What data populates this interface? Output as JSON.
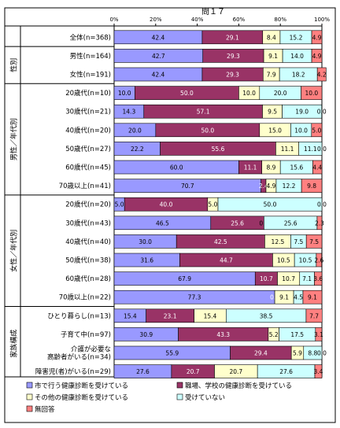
{
  "chart_data": {
    "type": "bar",
    "orientation": "horizontal",
    "stacked": "percent",
    "title": "問１７",
    "xlim": [
      0,
      100
    ],
    "x_ticks": [
      "0%",
      "20%",
      "40%",
      "60%",
      "80%",
      "100%"
    ],
    "legend_position": "bottom",
    "series": [
      {
        "name": "市で行う健康診断を受けている",
        "color": "#9999ff"
      },
      {
        "name": "職場、学校の健康診断を受けている",
        "color": "#993366"
      },
      {
        "name": "その他の健康診断を受けている",
        "color": "#ffffcc"
      },
      {
        "name": "受けていない",
        "color": "#ccffff"
      },
      {
        "name": "無回答",
        "color": "#ff8080"
      }
    ],
    "groups": [
      {
        "label": "",
        "rows": [
          0
        ]
      },
      {
        "label": "性別",
        "rows": [
          1,
          2
        ]
      },
      {
        "label": "男性／年代別",
        "rows": [
          3,
          4,
          5,
          6,
          7,
          8
        ]
      },
      {
        "label": "女性／年代別",
        "rows": [
          9,
          10,
          11,
          12,
          13,
          14
        ]
      },
      {
        "label": "家族構成",
        "rows": [
          15,
          16,
          17,
          18
        ]
      }
    ],
    "rows": [
      {
        "category": "全体(n=368)",
        "values": [
          42.4,
          29.1,
          8.4,
          15.2,
          4.9
        ],
        "labels": [
          "42.4",
          "29.1",
          "8.4",
          "15.2",
          "4.9"
        ]
      },
      {
        "category": "男性(n=164)",
        "values": [
          42.7,
          29.3,
          9.1,
          14.0,
          4.9
        ],
        "labels": [
          "42.7",
          "29.3",
          "9.1",
          "14.0",
          "4.9"
        ]
      },
      {
        "category": "女性(n=191)",
        "values": [
          42.4,
          29.3,
          7.9,
          18.2,
          4.2
        ],
        "labels": [
          "42.4",
          "29.3",
          "7.9",
          "18.2",
          "4.2"
        ]
      },
      {
        "category": "20歳代(n=10)",
        "values": [
          10.0,
          50.0,
          10.0,
          20.0,
          10.0
        ],
        "labels": [
          "10.0",
          "50.0",
          "10.0",
          "20.0",
          "10.0"
        ]
      },
      {
        "category": "30歳代(n=21)",
        "values": [
          14.3,
          57.1,
          9.5,
          19.0,
          0.0
        ],
        "labels": [
          "14.3",
          "57.1",
          "9.5",
          "19.0",
          "0.0"
        ]
      },
      {
        "category": "40歳代(n=20)",
        "values": [
          20.0,
          50.0,
          15.0,
          10.0,
          5.0
        ],
        "labels": [
          "20.0",
          "50.0",
          "15.0",
          "10.0",
          "5.0"
        ]
      },
      {
        "category": "50歳代(n=27)",
        "values": [
          22.2,
          55.6,
          11.1,
          11.1,
          0.0
        ],
        "labels": [
          "22.2",
          "55.6",
          "11.1",
          "11.1",
          "0.0"
        ]
      },
      {
        "category": "60歳代(n=45)",
        "values": [
          60.0,
          11.1,
          8.9,
          15.6,
          4.4
        ],
        "labels": [
          "60.0",
          "11.1",
          "8.9",
          "15.6",
          "4.4"
        ]
      },
      {
        "category": "70歳以上(n=41)",
        "values": [
          70.7,
          2.4,
          4.9,
          12.2,
          9.8
        ],
        "labels": [
          "70.7",
          "2.4",
          "4.9",
          "12.2",
          "9.8"
        ]
      },
      {
        "category": "20歳代(n=20)",
        "values": [
          5.0,
          40.0,
          5.0,
          50.0,
          0.0
        ],
        "labels": [
          "5.0",
          "40.0",
          "5.0",
          "50.0",
          "0.0"
        ]
      },
      {
        "category": "30歳代(n=43)",
        "values": [
          46.5,
          25.6,
          0.0,
          25.6,
          2.3
        ],
        "labels": [
          "46.5",
          "25.6",
          "0.0",
          "25.6",
          "2.3"
        ]
      },
      {
        "category": "40歳代(n=40)",
        "values": [
          30.0,
          42.5,
          12.5,
          7.5,
          7.5
        ],
        "labels": [
          "30.0",
          "42.5",
          "12.5",
          "7.5",
          "7.5"
        ]
      },
      {
        "category": "50歳代(n=38)",
        "values": [
          31.6,
          44.7,
          10.5,
          10.5,
          2.6
        ],
        "labels": [
          "31.6",
          "44.7",
          "10.5",
          "10.5",
          "2.6"
        ]
      },
      {
        "category": "60歳代(n=28)",
        "values": [
          67.9,
          10.7,
          10.7,
          7.1,
          3.6
        ],
        "labels": [
          "67.9",
          "10.7",
          "10.7",
          "7.1",
          "3.6"
        ]
      },
      {
        "category": "70歳以上(n=22)",
        "values": [
          77.3,
          0.0,
          9.1,
          4.5,
          9.1
        ],
        "labels": [
          "77.3",
          "0.0",
          "9.1",
          "4.5",
          "9.1"
        ]
      },
      {
        "category": "ひとり暮らし(n=13)",
        "values": [
          15.4,
          23.1,
          15.4,
          38.5,
          7.7
        ],
        "labels": [
          "15.4",
          "23.1",
          "15.4",
          "38.5",
          "7.7"
        ]
      },
      {
        "category": "子育て中(n=97)",
        "values": [
          30.9,
          43.3,
          5.2,
          17.5,
          3.1
        ],
        "labels": [
          "30.9",
          "43.3",
          "5.2",
          "17.5",
          "3.1"
        ]
      },
      {
        "category": "介護が必要な|高齢者がいる(n=34)",
        "values": [
          55.9,
          29.4,
          5.9,
          8.8,
          0.0
        ],
        "labels": [
          "55.9",
          "29.4",
          "5.9",
          "8.8",
          "0.0"
        ]
      },
      {
        "category": "障害児(者)がいる(n=29)",
        "values": [
          27.6,
          20.7,
          20.7,
          27.6,
          3.4
        ],
        "labels": [
          "27.6",
          "20.7",
          "20.7",
          "27.6",
          "3.4"
        ]
      }
    ]
  }
}
